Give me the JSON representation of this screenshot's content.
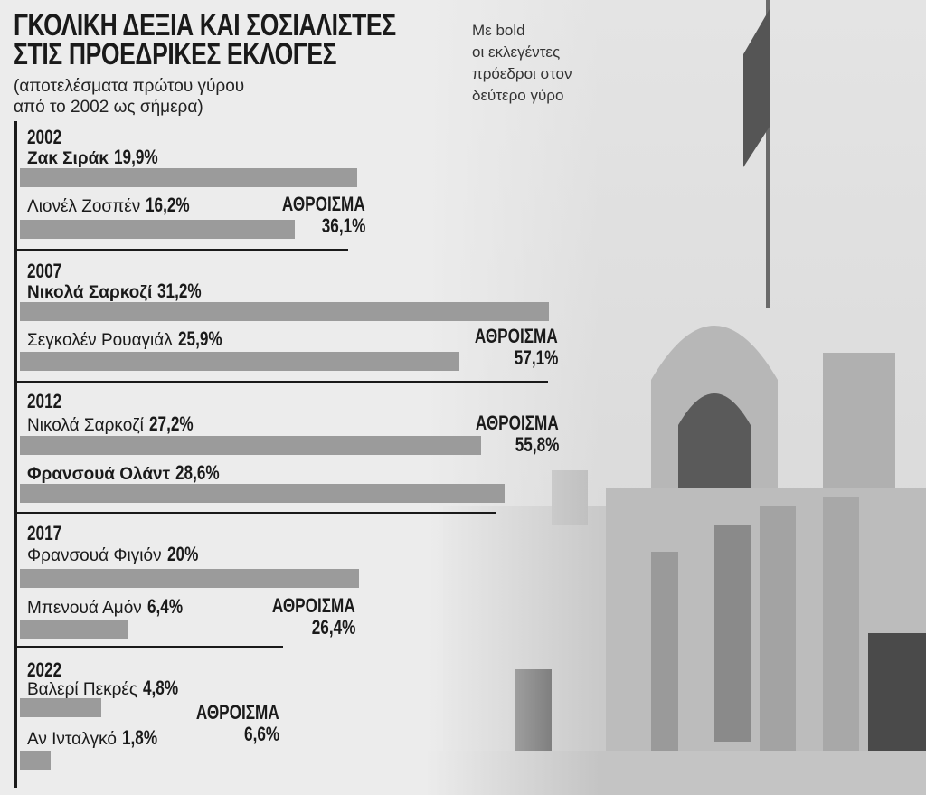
{
  "title_line1": "ΓΚΟΛΙΚΗ ΔΕΞΙΑ ΚΑΙ ΣΟΣΙΑΛΙΣΤΕΣ",
  "title_line2": "ΣΤΙΣ ΠΡΟΕΔΡΙΚΕΣ ΕΚΛΟΓΕΣ",
  "subtitle_line1": "(αποτελέσματα πρώτου γύρου",
  "subtitle_line2": "από το 2002 ως σήμερα)",
  "note_lines": [
    "Με bold",
    "οι εκλεγέντες",
    "πρόεδροι στον",
    "δεύτερο γύρο"
  ],
  "total_label": "ΑΘΡΟΙΣΜΑ",
  "bar_color": "#9b9b9b",
  "chart_data": {
    "type": "bar",
    "orientation": "horizontal",
    "unit": "%",
    "groups": [
      {
        "year": "2002",
        "candidates": [
          {
            "name": "Ζακ Σιράκ",
            "value": 19.9,
            "label": "19,9%",
            "bold": true
          },
          {
            "name": "Λιονέλ Ζοσπέν",
            "value": 16.2,
            "label": "16,2%",
            "bold": false
          }
        ],
        "total": "36,1%"
      },
      {
        "year": "2007",
        "candidates": [
          {
            "name": "Νικολά Σαρκοζί",
            "value": 31.2,
            "label": "31,2%",
            "bold": true
          },
          {
            "name": "Σεγκολέν Ρουαγιάλ",
            "value": 25.9,
            "label": "25,9%",
            "bold": false
          }
        ],
        "total": "57,1%"
      },
      {
        "year": "2012",
        "candidates": [
          {
            "name": "Νικολά Σαρκοζί",
            "value": 27.2,
            "label": "27,2%",
            "bold": false
          },
          {
            "name": "Φρανσουά Ολάντ",
            "value": 28.6,
            "label": "28,6%",
            "bold": true
          }
        ],
        "total": "55,8%"
      },
      {
        "year": "2017",
        "candidates": [
          {
            "name": "Φρανσουά Φιγιόν",
            "value": 20,
            "label": "20%",
            "bold": false
          },
          {
            "name": "Μπενουά Αμόν",
            "value": 6.4,
            "label": "6,4%",
            "bold": false
          }
        ],
        "total": "26,4%"
      },
      {
        "year": "2022",
        "candidates": [
          {
            "name": "Βαλερί Πεκρές",
            "value": 4.8,
            "label": "4,8%",
            "bold": false
          },
          {
            "name": "Αν Ινταλγκό",
            "value": 1.8,
            "label": "1,8%",
            "bold": false
          }
        ],
        "total": "6,6%"
      }
    ]
  }
}
